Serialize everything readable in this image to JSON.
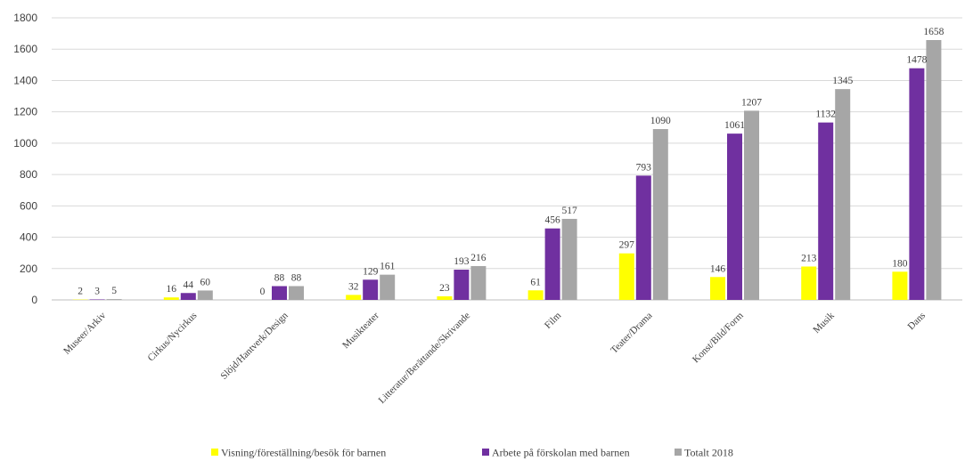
{
  "chart_data": {
    "type": "bar",
    "categories": [
      "Museer/Arkiv",
      "Cirkus/Nycirkus",
      "Slöjd/Hantverk/Design",
      "Musikteater",
      "Litteratur/Berättande/Skrivande",
      "Film",
      "Teater/Drama",
      "Konst/Bild/Form",
      "Musik",
      "Dans"
    ],
    "series": [
      {
        "name": "Visning/föreställning/besök för barnen",
        "color": "#ffff00",
        "values": [
          2,
          16,
          0,
          32,
          23,
          61,
          297,
          146,
          213,
          180
        ]
      },
      {
        "name": "Arbete på förskolan med barnen",
        "color": "#7030a0",
        "values": [
          3,
          44,
          88,
          129,
          193,
          456,
          793,
          1061,
          1132,
          1478
        ]
      },
      {
        "name": "Totalt 2018",
        "color": "#a6a6a6",
        "values": [
          5,
          60,
          88,
          161,
          216,
          517,
          1090,
          1207,
          1345,
          1658
        ]
      }
    ],
    "yticks": [
      "0",
      "200",
      "400",
      "600",
      "800",
      "1000",
      "1200",
      "1400",
      "1600",
      "1800"
    ],
    "ylim": [
      0,
      1800
    ],
    "grid": true,
    "legend": "bottom",
    "title": "",
    "xlabel": "",
    "ylabel": ""
  }
}
